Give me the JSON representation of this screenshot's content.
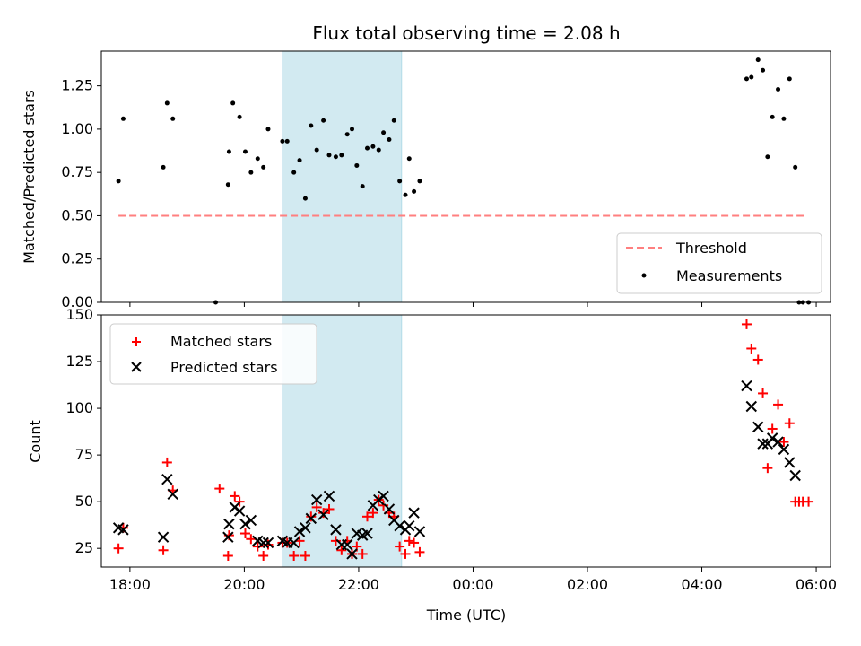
{
  "chart_data": [
    {
      "type": "scatter",
      "title": "Flux total observing time = 2.08 h",
      "xlabel": "",
      "ylabel": "Matched/Predicted stars",
      "xlim": [
        "17:30",
        "06:15"
      ],
      "ylim": [
        0,
        1.45
      ],
      "yticks": [
        "0.00",
        "0.25",
        "0.50",
        "0.75",
        "1.00",
        "1.25"
      ],
      "shaded_region": {
        "x": [
          "20:40",
          "22:45"
        ],
        "color": "#add8e6"
      },
      "legend_position": "lower right",
      "series": [
        {
          "name": "Threshold",
          "kind": "dashed-line",
          "color": "#ff7f7f",
          "points": [
            [
              "17:48",
              0.5
            ],
            [
              "05:48",
              0.5
            ]
          ]
        },
        {
          "name": "Measurements",
          "kind": "dot",
          "color": "#000000",
          "points": [
            [
              "17:48",
              0.7
            ],
            [
              "17:53",
              1.06
            ],
            [
              "18:35",
              0.78
            ],
            [
              "18:39",
              1.15
            ],
            [
              "18:45",
              1.06
            ],
            [
              "19:30",
              0.0
            ],
            [
              "19:43",
              0.68
            ],
            [
              "19:44",
              0.87
            ],
            [
              "19:48",
              1.15
            ],
            [
              "19:55",
              1.07
            ],
            [
              "20:01",
              0.87
            ],
            [
              "20:07",
              0.75
            ],
            [
              "20:14",
              0.83
            ],
            [
              "20:20",
              0.78
            ],
            [
              "20:25",
              1.0
            ],
            [
              "20:40",
              0.93
            ],
            [
              "20:45",
              0.93
            ],
            [
              "20:52",
              0.75
            ],
            [
              "20:58",
              0.82
            ],
            [
              "21:04",
              0.6
            ],
            [
              "21:10",
              1.02
            ],
            [
              "21:16",
              0.88
            ],
            [
              "21:23",
              1.05
            ],
            [
              "21:29",
              0.85
            ],
            [
              "21:36",
              0.84
            ],
            [
              "21:42",
              0.85
            ],
            [
              "21:48",
              0.97
            ],
            [
              "21:53",
              1.0
            ],
            [
              "21:58",
              0.79
            ],
            [
              "22:04",
              0.67
            ],
            [
              "22:09",
              0.89
            ],
            [
              "22:15",
              0.9
            ],
            [
              "22:21",
              0.88
            ],
            [
              "22:26",
              0.98
            ],
            [
              "22:32",
              0.94
            ],
            [
              "22:37",
              1.05
            ],
            [
              "22:43",
              0.7
            ],
            [
              "22:49",
              0.62
            ],
            [
              "22:53",
              0.83
            ],
            [
              "22:58",
              0.64
            ],
            [
              "23:04",
              0.7
            ],
            [
              "04:47",
              1.29
            ],
            [
              "04:52",
              1.3
            ],
            [
              "04:59",
              1.4
            ],
            [
              "05:04",
              1.34
            ],
            [
              "05:09",
              0.84
            ],
            [
              "05:14",
              1.07
            ],
            [
              "05:20",
              1.23
            ],
            [
              "05:26",
              1.06
            ],
            [
              "05:32",
              1.29
            ],
            [
              "05:38",
              0.78
            ],
            [
              "05:42",
              0.0
            ],
            [
              "05:46",
              0.0
            ],
            [
              "05:52",
              0.0
            ]
          ]
        }
      ],
      "x_tick_marks": [
        "18:00",
        "20:00",
        "22:00",
        "00:00",
        "02:00",
        "04:00",
        "06:00"
      ]
    },
    {
      "type": "scatter",
      "title": "",
      "xlabel": "Time (UTC)",
      "ylabel": "Count",
      "xlim": [
        "17:30",
        "06:15"
      ],
      "ylim": [
        15,
        150
      ],
      "yticks": [
        "25",
        "50",
        "75",
        "100",
        "125",
        "150"
      ],
      "xticks": [
        "18:00",
        "20:00",
        "22:00",
        "00:00",
        "02:00",
        "04:00",
        "06:00"
      ],
      "shaded_region": {
        "x": [
          "20:40",
          "22:45"
        ],
        "color": "#add8e6"
      },
      "legend_position": "upper left",
      "series": [
        {
          "name": "Matched stars",
          "kind": "plus",
          "color": "#ff0000",
          "points": [
            [
              "17:48",
              25
            ],
            [
              "17:53",
              36
            ],
            [
              "18:35",
              24
            ],
            [
              "18:39",
              71
            ],
            [
              "18:45",
              56
            ],
            [
              "19:34",
              57
            ],
            [
              "19:43",
              21
            ],
            [
              "19:44",
              32
            ],
            [
              "19:50",
              53
            ],
            [
              "19:55",
              50
            ],
            [
              "20:01",
              33
            ],
            [
              "20:07",
              30
            ],
            [
              "20:14",
              26
            ],
            [
              "20:20",
              21
            ],
            [
              "20:25",
              27
            ],
            [
              "20:40",
              28
            ],
            [
              "20:45",
              28
            ],
            [
              "20:52",
              21
            ],
            [
              "20:58",
              29
            ],
            [
              "21:04",
              21
            ],
            [
              "21:10",
              42
            ],
            [
              "21:16",
              47
            ],
            [
              "21:23",
              44
            ],
            [
              "21:29",
              46
            ],
            [
              "21:36",
              29
            ],
            [
              "21:42",
              24
            ],
            [
              "21:48",
              29
            ],
            [
              "21:53",
              22
            ],
            [
              "21:58",
              26
            ],
            [
              "22:04",
              22
            ],
            [
              "22:09",
              42
            ],
            [
              "22:15",
              44
            ],
            [
              "22:21",
              51
            ],
            [
              "22:26",
              48
            ],
            [
              "22:32",
              44
            ],
            [
              "22:37",
              42
            ],
            [
              "22:43",
              26
            ],
            [
              "22:49",
              22
            ],
            [
              "22:53",
              29
            ],
            [
              "22:58",
              28
            ],
            [
              "23:04",
              23
            ],
            [
              "04:47",
              145
            ],
            [
              "04:52",
              132
            ],
            [
              "04:59",
              126
            ],
            [
              "05:04",
              108
            ],
            [
              "05:09",
              68
            ],
            [
              "05:14",
              89
            ],
            [
              "05:20",
              102
            ],
            [
              "05:26",
              82
            ],
            [
              "05:32",
              92
            ],
            [
              "05:38",
              50
            ],
            [
              "05:42",
              50
            ],
            [
              "05:46",
              50
            ],
            [
              "05:52",
              50
            ]
          ]
        },
        {
          "name": "Predicted stars",
          "kind": "cross",
          "color": "#000000",
          "points": [
            [
              "17:48",
              36
            ],
            [
              "17:53",
              35
            ],
            [
              "18:35",
              31
            ],
            [
              "18:39",
              62
            ],
            [
              "18:45",
              54
            ],
            [
              "19:43",
              31
            ],
            [
              "19:44",
              38
            ],
            [
              "19:50",
              47
            ],
            [
              "19:55",
              45
            ],
            [
              "20:01",
              38
            ],
            [
              "20:07",
              40
            ],
            [
              "20:14",
              29
            ],
            [
              "20:20",
              28
            ],
            [
              "20:25",
              28
            ],
            [
              "20:40",
              29
            ],
            [
              "20:45",
              28
            ],
            [
              "20:52",
              28
            ],
            [
              "20:58",
              34
            ],
            [
              "21:04",
              36
            ],
            [
              "21:10",
              41
            ],
            [
              "21:16",
              51
            ],
            [
              "21:23",
              43
            ],
            [
              "21:29",
              53
            ],
            [
              "21:36",
              35
            ],
            [
              "21:42",
              27
            ],
            [
              "21:48",
              27
            ],
            [
              "21:53",
              22
            ],
            [
              "21:58",
              33
            ],
            [
              "22:04",
              32
            ],
            [
              "22:09",
              33
            ],
            [
              "22:15",
              48
            ],
            [
              "22:21",
              51
            ],
            [
              "22:26",
              53
            ],
            [
              "22:32",
              46
            ],
            [
              "22:37",
              40
            ],
            [
              "22:43",
              37
            ],
            [
              "22:49",
              35
            ],
            [
              "22:53",
              37
            ],
            [
              "22:58",
              44
            ],
            [
              "23:04",
              34
            ],
            [
              "04:47",
              112
            ],
            [
              "04:52",
              101
            ],
            [
              "04:59",
              90
            ],
            [
              "05:04",
              81
            ],
            [
              "05:09",
              81
            ],
            [
              "05:14",
              84
            ],
            [
              "05:20",
              82
            ],
            [
              "05:26",
              78
            ],
            [
              "05:32",
              71
            ],
            [
              "05:38",
              64
            ]
          ]
        }
      ]
    }
  ]
}
